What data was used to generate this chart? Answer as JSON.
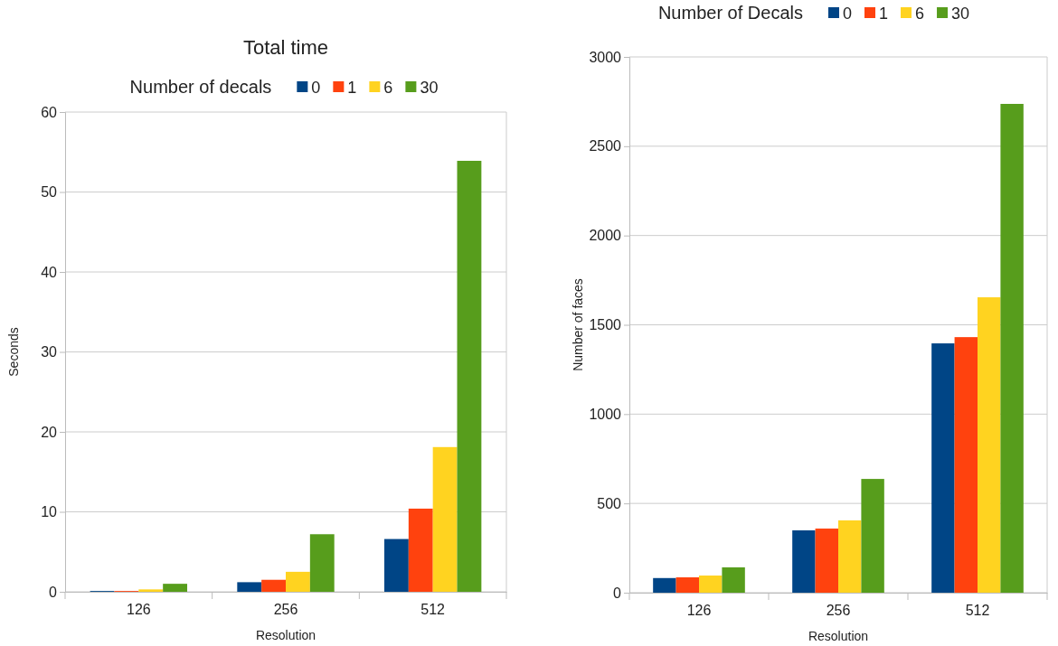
{
  "chart_data": [
    {
      "type": "bar",
      "title": "Total time",
      "legend_title": "Number of decals",
      "xlabel": "Resolution",
      "ylabel": "Seconds",
      "categories": [
        "126",
        "256",
        "512"
      ],
      "series": [
        {
          "name": "0",
          "color": "#004586",
          "values": [
            0.1,
            1.2,
            6.6
          ]
        },
        {
          "name": "1",
          "color": "#ff420e",
          "values": [
            0.1,
            1.5,
            10.4
          ]
        },
        {
          "name": "6",
          "color": "#ffd320",
          "values": [
            0.3,
            2.5,
            18.1
          ]
        },
        {
          "name": "30",
          "color": "#579d1c",
          "values": [
            1.0,
            7.2,
            53.9
          ]
        }
      ],
      "ylim": [
        0,
        60
      ],
      "yticks": [
        0,
        10,
        20,
        30,
        40,
        50,
        60
      ],
      "grid": "y",
      "legend": "top"
    },
    {
      "type": "bar",
      "legend_title": "Number of Decals",
      "xlabel": "Resolution",
      "ylabel": "Number of faces",
      "categories": [
        "126",
        "256",
        "512"
      ],
      "series": [
        {
          "name": "0",
          "color": "#004586",
          "values": [
            82,
            349,
            1396
          ]
        },
        {
          "name": "1",
          "color": "#ff420e",
          "values": [
            86,
            359,
            1431
          ]
        },
        {
          "name": "6",
          "color": "#ffd320",
          "values": [
            96,
            405,
            1654
          ]
        },
        {
          "name": "30",
          "color": "#579d1c",
          "values": [
            142,
            637,
            2737
          ]
        }
      ],
      "ylim": [
        0,
        3000
      ],
      "yticks": [
        0,
        500,
        1000,
        1500,
        2000,
        2500,
        3000
      ],
      "grid": "y",
      "legend": "top"
    }
  ]
}
